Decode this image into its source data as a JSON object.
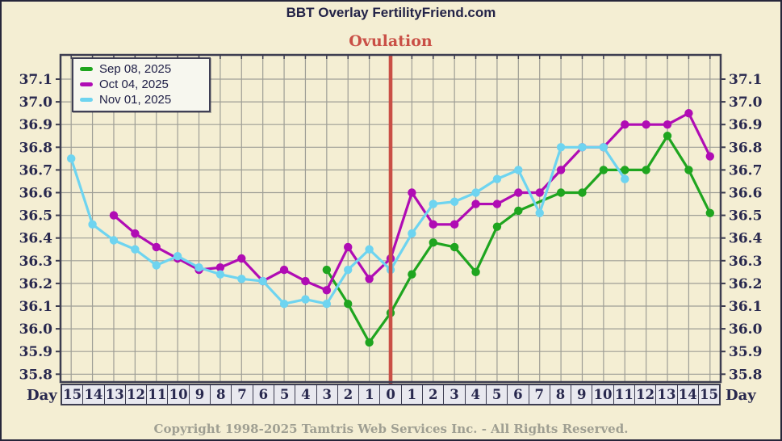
{
  "page": {
    "title": "BBT Overlay FertilityFriend.com",
    "footer": "Copyright 1998-2025 Tamtris Web Services Inc. - All Rights Reserved."
  },
  "chart_data": {
    "type": "line",
    "title": "BBT Overlay FertilityFriend.com",
    "annotation": "Ovulation",
    "x_axis_label": "Day",
    "x_ticks": [
      "15",
      "14",
      "13",
      "12",
      "11",
      "10",
      "9",
      "8",
      "7",
      "6",
      "5",
      "4",
      "3",
      "2",
      "1",
      "0",
      "1",
      "2",
      "3",
      "4",
      "5",
      "6",
      "7",
      "8",
      "9",
      "10",
      "11",
      "12",
      "13",
      "14",
      "15"
    ],
    "y_ticks": [
      "37.1",
      "37.0",
      "36.9",
      "36.8",
      "36.7",
      "36.6",
      "36.5",
      "36.4",
      "36.3",
      "36.2",
      "36.1",
      "36.0",
      "35.9",
      "35.8"
    ],
    "ylim": [
      35.8,
      37.1
    ],
    "ovulation_tick_index": 15,
    "grid": true,
    "legend_position": "top-left",
    "gap_policy": "connect-interior-gaps",
    "series": [
      {
        "name": "Sep 08, 2025",
        "color": "#1fa51f",
        "values": [
          null,
          null,
          null,
          null,
          null,
          null,
          null,
          null,
          null,
          null,
          null,
          null,
          36.26,
          36.11,
          35.94,
          36.07,
          36.24,
          36.38,
          36.36,
          36.25,
          36.45,
          36.52,
          null,
          36.6,
          36.6,
          36.7,
          36.7,
          36.7,
          36.85,
          36.7,
          36.51
        ]
      },
      {
        "name": "Oct 04, 2025",
        "color": "#b00cb4",
        "values": [
          null,
          null,
          36.5,
          36.42,
          36.36,
          36.31,
          36.26,
          36.27,
          36.31,
          36.21,
          36.26,
          36.21,
          36.17,
          36.36,
          36.22,
          36.31,
          36.6,
          36.46,
          36.46,
          36.55,
          36.55,
          36.6,
          36.6,
          36.7,
          36.8,
          36.8,
          36.9,
          36.9,
          36.9,
          36.95,
          36.76
        ]
      },
      {
        "name": "Nov 01, 2025",
        "color": "#6ed4f0",
        "values": [
          36.75,
          36.46,
          36.39,
          36.35,
          36.28,
          36.32,
          36.27,
          36.24,
          36.22,
          36.21,
          36.11,
          36.13,
          36.11,
          36.26,
          36.35,
          36.26,
          36.42,
          36.55,
          36.56,
          36.6,
          36.66,
          36.7,
          36.51,
          36.8,
          36.8,
          36.8,
          36.66,
          null,
          null,
          null,
          null
        ]
      }
    ],
    "colors": {
      "background": "#f4eed3",
      "grid": "#9e9e96",
      "border": "#3c3c50",
      "axis_text": "#28284e",
      "ovulation": "#c94f46",
      "day_row_bg": "#e8e8ef",
      "legend_bg": "#f7f7ef",
      "copyright_text": "#9f9f92"
    }
  }
}
